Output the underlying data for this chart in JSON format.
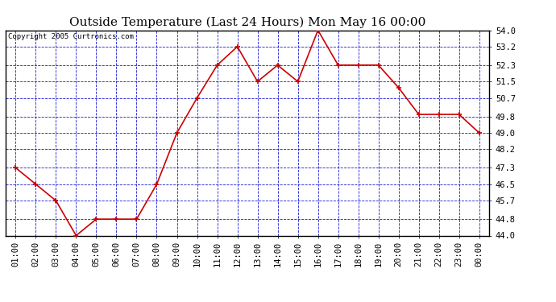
{
  "title": "Outside Temperature (Last 24 Hours) Mon May 16 00:00",
  "copyright_text": "Copyright 2005 Curtronics.com",
  "x_labels": [
    "01:00",
    "02:00",
    "03:00",
    "04:00",
    "05:00",
    "06:00",
    "07:00",
    "08:00",
    "09:00",
    "10:00",
    "11:00",
    "12:00",
    "13:00",
    "14:00",
    "15:00",
    "16:00",
    "17:00",
    "18:00",
    "19:00",
    "20:00",
    "21:00",
    "22:00",
    "23:00",
    "00:00"
  ],
  "y_values": [
    47.3,
    46.5,
    45.7,
    44.0,
    44.8,
    44.8,
    44.8,
    46.5,
    49.0,
    50.7,
    52.3,
    53.2,
    51.5,
    52.3,
    51.5,
    54.0,
    52.3,
    52.3,
    52.3,
    51.2,
    49.9,
    49.9,
    49.9,
    49.0
  ],
  "y_ticks": [
    44.0,
    44.8,
    45.7,
    46.5,
    47.3,
    48.2,
    49.0,
    49.8,
    50.7,
    51.5,
    52.3,
    53.2,
    54.0
  ],
  "ylim": [
    44.0,
    54.0
  ],
  "line_color": "#cc0000",
  "marker_color": "#cc0000",
  "bg_color": "#ffffff",
  "plot_bg_color": "#ffffff",
  "grid_color": "#0000cc",
  "title_fontsize": 11,
  "tick_fontsize": 7.5,
  "copyright_fontsize": 6.5
}
